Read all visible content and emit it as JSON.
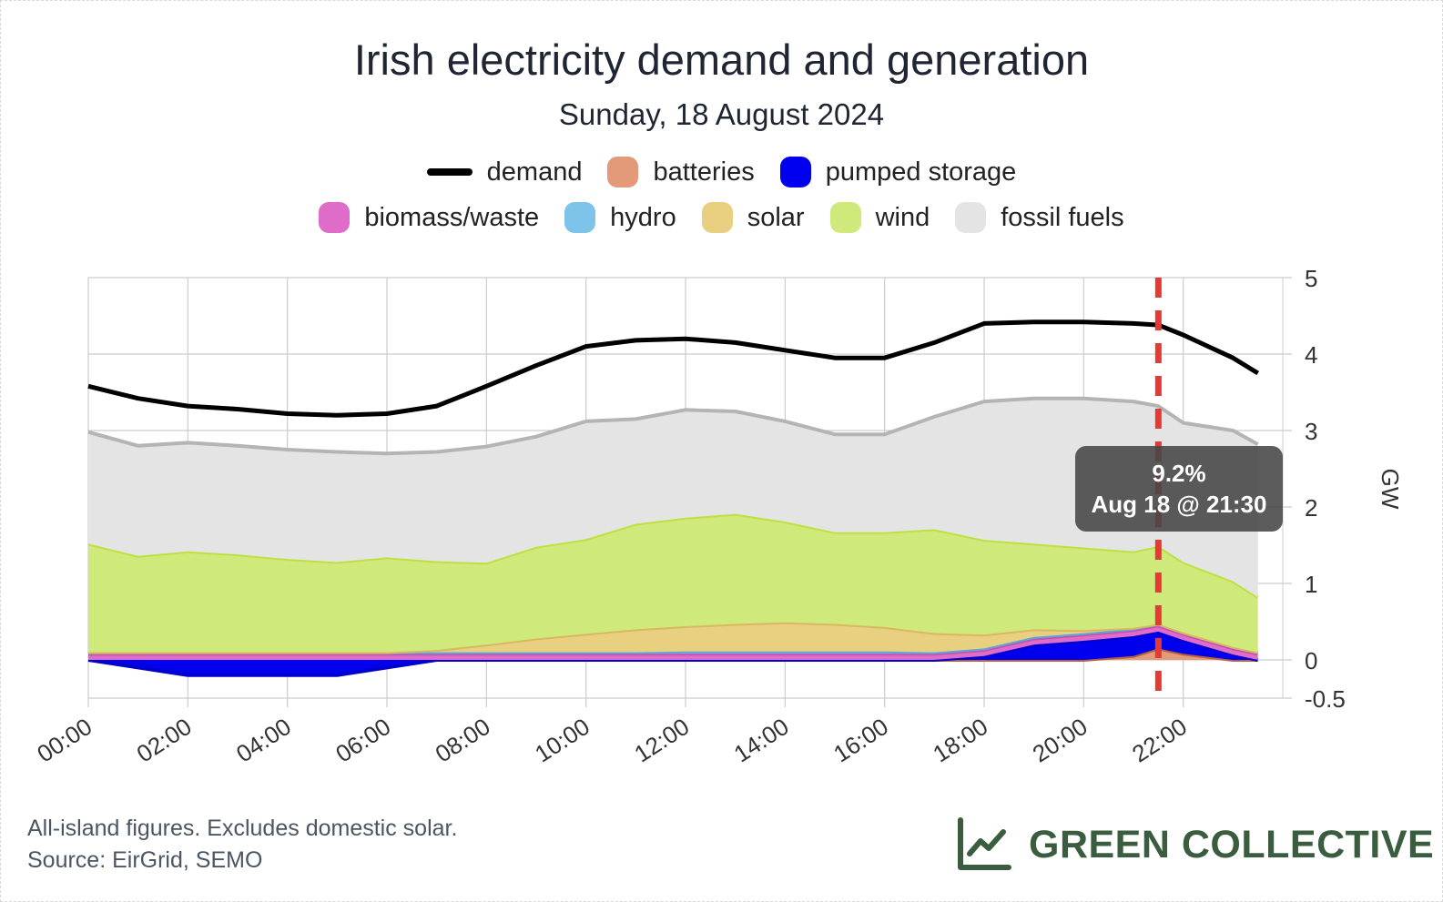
{
  "title": "Irish electricity demand and generation",
  "subtitle": "Sunday, 18 August 2024",
  "legend": [
    {
      "label": "demand",
      "color": "#000000",
      "shape": "line"
    },
    {
      "label": "batteries",
      "color": "#e39a78",
      "shape": "box"
    },
    {
      "label": "pumped storage",
      "color": "#0000ee",
      "shape": "box"
    },
    {
      "label": "biomass/waste",
      "color": "#de6cc8",
      "shape": "box"
    },
    {
      "label": "hydro",
      "color": "#7ec3ea",
      "shape": "box"
    },
    {
      "label": "solar",
      "color": "#e8d080",
      "shape": "box"
    },
    {
      "label": "wind",
      "color": "#cfe97a",
      "shape": "box"
    },
    {
      "label": "fossil fuels",
      "color": "#e4e4e4",
      "shape": "box"
    }
  ],
  "tooltip": {
    "value": "9.2%",
    "time": "Aug 18 @ 21:30"
  },
  "footnote": {
    "line1": "All-island figures. Excludes domestic solar.",
    "line2": "Source: EirGrid, SEMO"
  },
  "brand": {
    "name": "GREEN COLLECTIVE",
    "icon": "line-chart-icon",
    "color": "#3b5d3f"
  },
  "chart_data": {
    "type": "area",
    "ylabel": "GW",
    "ylim": [
      -0.5,
      5
    ],
    "yticks": [
      5,
      4,
      3,
      2,
      1,
      0,
      -0.5
    ],
    "x": [
      "00:00",
      "01:00",
      "02:00",
      "03:00",
      "04:00",
      "05:00",
      "06:00",
      "07:00",
      "08:00",
      "09:00",
      "10:00",
      "11:00",
      "12:00",
      "13:00",
      "14:00",
      "15:00",
      "16:00",
      "17:00",
      "18:00",
      "19:00",
      "20:00",
      "21:00",
      "21:30",
      "22:00",
      "23:00",
      "23:30"
    ],
    "xticks": [
      "00:00",
      "02:00",
      "04:00",
      "06:00",
      "08:00",
      "10:00",
      "12:00",
      "14:00",
      "16:00",
      "18:00",
      "20:00",
      "22:00"
    ],
    "marker": {
      "x": "21:30",
      "color": "#e53935"
    },
    "demand": [
      3.58,
      3.42,
      3.32,
      3.28,
      3.22,
      3.2,
      3.22,
      3.32,
      3.58,
      3.85,
      4.1,
      4.18,
      4.2,
      4.15,
      4.05,
      3.95,
      3.95,
      4.15,
      4.4,
      4.42,
      4.42,
      4.4,
      4.38,
      4.25,
      3.95,
      3.75
    ],
    "total_generation": [
      2.98,
      2.8,
      2.84,
      2.8,
      2.75,
      2.72,
      2.7,
      2.72,
      2.9,
      3.02,
      3.12,
      3.15,
      3.27,
      3.25,
      3.12,
      2.95,
      2.95,
      3.18,
      3.38,
      3.42,
      3.42,
      3.38,
      3.32,
      3.2,
      3.0,
      2.82
    ],
    "series": [
      {
        "name": "batteries",
        "color": "#e39a78",
        "stroke": "#b5603a",
        "values": [
          0,
          0,
          0,
          0,
          0,
          0,
          0,
          0,
          0,
          0,
          0,
          0,
          0,
          0,
          0,
          0,
          0,
          0,
          0,
          0,
          0,
          0.05,
          0.15,
          0.08,
          0,
          0
        ]
      },
      {
        "name": "pumped storage",
        "color": "#0000ee",
        "stroke": "#0000cc",
        "values": [
          0,
          -0.1,
          -0.2,
          -0.2,
          -0.2,
          -0.2,
          -0.1,
          0,
          0,
          0,
          0,
          0,
          0,
          0,
          0,
          0,
          0,
          0,
          0.05,
          0.2,
          0.25,
          0.26,
          0.22,
          0.18,
          0.07,
          0
        ]
      },
      {
        "name": "biomass/waste",
        "color": "#de6cc8",
        "stroke": "#c64fb0",
        "values": [
          0.08,
          0.08,
          0.08,
          0.08,
          0.08,
          0.08,
          0.08,
          0.08,
          0.08,
          0.08,
          0.08,
          0.08,
          0.08,
          0.08,
          0.08,
          0.08,
          0.08,
          0.08,
          0.08,
          0.08,
          0.08,
          0.08,
          0.08,
          0.08,
          0.08,
          0.08
        ]
      },
      {
        "name": "hydro",
        "color": "#7ec3ea",
        "stroke": "#5aa8d8",
        "values": [
          0.02,
          0.02,
          0.02,
          0.02,
          0.02,
          0.02,
          0.02,
          0.02,
          0.02,
          0.02,
          0.02,
          0.02,
          0.03,
          0.03,
          0.03,
          0.03,
          0.03,
          0.02,
          0.02,
          0.02,
          0.02,
          0.02,
          0.02,
          0.02,
          0.02,
          0.02
        ]
      },
      {
        "name": "solar",
        "color": "#e8d080",
        "stroke": "#d8b860",
        "values": [
          0,
          0,
          0,
          0,
          0,
          0,
          0,
          0.03,
          0.1,
          0.18,
          0.24,
          0.3,
          0.33,
          0.36,
          0.38,
          0.36,
          0.32,
          0.25,
          0.18,
          0.1,
          0.04,
          0.01,
          0,
          0,
          0,
          0
        ]
      },
      {
        "name": "wind",
        "color": "#cfe97a",
        "stroke": "#bfe040",
        "values": [
          1.42,
          1.26,
          1.32,
          1.28,
          1.22,
          1.18,
          1.24,
          1.16,
          1.07,
          1.2,
          1.24,
          1.38,
          1.42,
          1.44,
          1.32,
          1.2,
          1.24,
          1.36,
          1.24,
          1.12,
          1.08,
          1.0,
          1.02,
          0.92,
          0.86,
          0.72
        ]
      },
      {
        "name": "fossil fuels",
        "color": "#e4e4e4",
        "stroke": "#b4b4b4",
        "values": [
          1.46,
          1.44,
          1.42,
          1.42,
          1.43,
          1.44,
          1.36,
          1.43,
          1.52,
          1.44,
          1.54,
          1.37,
          1.41,
          1.34,
          1.31,
          1.28,
          1.28,
          1.47,
          1.81,
          1.9,
          1.95,
          1.96,
          1.83,
          1.82,
          1.97,
          2.0
        ]
      }
    ]
  }
}
